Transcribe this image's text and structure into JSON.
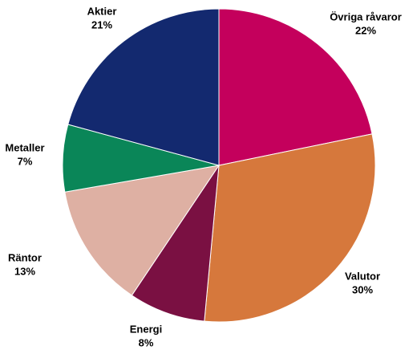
{
  "chart_data": {
    "type": "pie",
    "categories": [
      "Övriga råvaror",
      "Valutor",
      "Energi",
      "Räntor",
      "Metaller",
      "Aktier"
    ],
    "values": [
      22,
      30,
      8,
      13,
      7,
      21
    ],
    "value_labels": [
      "22%",
      "30%",
      "8%",
      "13%",
      "7%",
      "21%"
    ],
    "colors": [
      "#c4005c",
      "#d6783c",
      "#7a1042",
      "#deb0a3",
      "#0a8658",
      "#13296f"
    ]
  }
}
